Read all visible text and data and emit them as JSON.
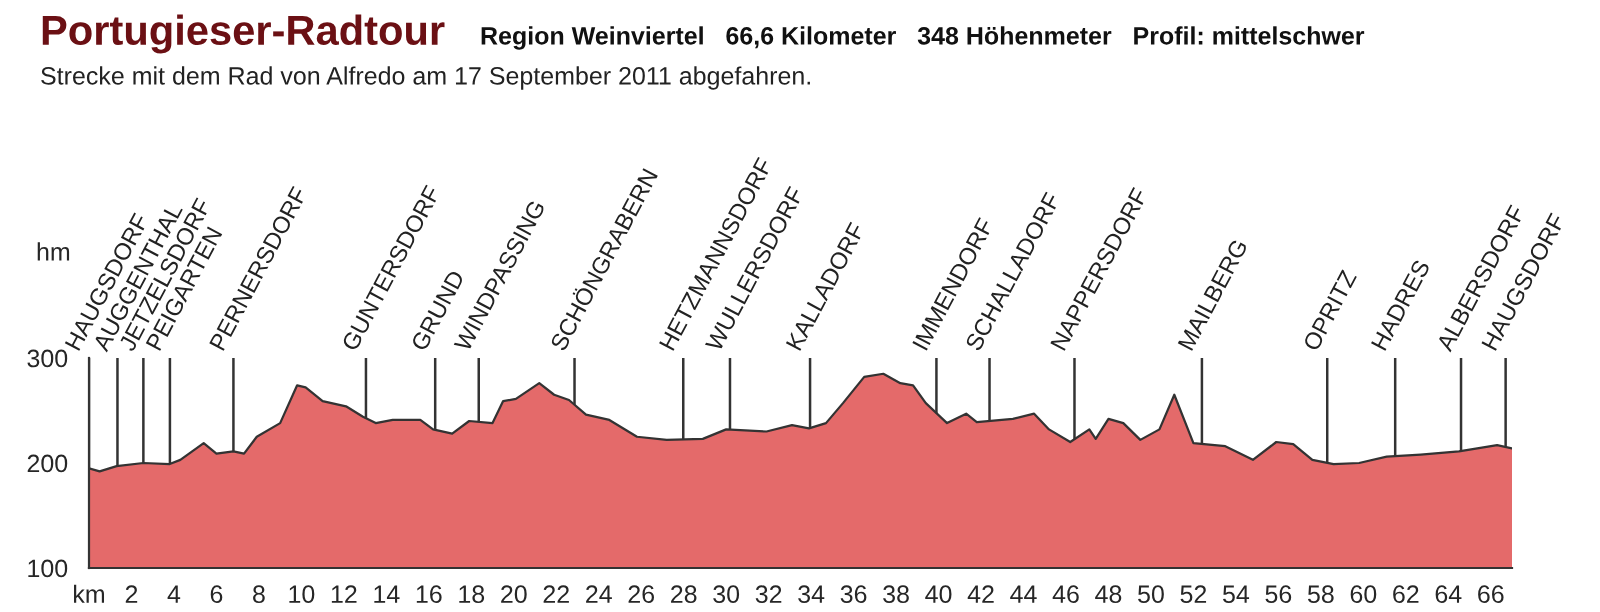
{
  "chart_data": {
    "type": "area",
    "title": "Portugieser-Radtour",
    "subtitle": "Region Weinviertel   66,6 Kilometer   348 Höhenmeter   Profil: mittelschwer",
    "annotations": [
      "Strecke mit dem Rad von Alfredo am 17 September 2011 abgefahren."
    ],
    "ylabel": "hm",
    "x": [
      0,
      0.5,
      1.3,
      2.56,
      3.8,
      4.3,
      5.4,
      6.0,
      6.8,
      7.3,
      7.9,
      9.0,
      9.8,
      10.2,
      11.0,
      12.1,
      12.9,
      13.5,
      14.3,
      15.6,
      16.2,
      17.1,
      17.9,
      19.0,
      19.5,
      20.1,
      21.2,
      21.9,
      22.6,
      23.4,
      24.5,
      25.8,
      27.2,
      28.9,
      30.0,
      31.9,
      33.1,
      33.9,
      34.7,
      35.5,
      36.5,
      37.4,
      38.2,
      38.8,
      39.4,
      40.4,
      41.3,
      41.8,
      43.5,
      44.5,
      45.2,
      46.2,
      47.1,
      47.4,
      48.0,
      48.7,
      49.5,
      50.4,
      51.1,
      52.0,
      53.5,
      54.8,
      55.9,
      56.7,
      57.6,
      58.6,
      59.8,
      61.1,
      62.7,
      64.5,
      66.3,
      67.0
    ],
    "series": [
      {
        "color": "#e46a6a",
        "values": [
          195,
          192,
          197,
          200,
          199,
          203,
          219,
          209,
          211,
          209,
          225,
          238,
          274,
          272,
          259,
          254,
          244,
          238,
          241,
          241,
          232,
          228,
          240,
          238,
          259,
          261,
          276,
          265,
          260,
          246,
          241,
          225,
          222,
          223,
          232,
          230,
          236,
          233,
          238,
          257,
          282,
          285,
          276,
          274,
          257,
          238,
          247,
          239,
          242,
          247,
          232,
          220,
          232,
          223,
          242,
          238,
          222,
          232,
          265,
          219,
          216,
          203,
          220,
          218,
          203,
          199,
          200,
          206,
          208,
          211,
          217,
          214
        ]
      }
    ],
    "xlim": [
      0,
      67
    ],
    "xticks": [
      {
        "value": 0,
        "label": "km"
      },
      2,
      4,
      6,
      8,
      10,
      12,
      14,
      16,
      18,
      20,
      22,
      24,
      26,
      28,
      30,
      32,
      34,
      36,
      38,
      40,
      42,
      44,
      46,
      48,
      50,
      52,
      54,
      56,
      58,
      60,
      62,
      64,
      66
    ],
    "ylim": [
      100,
      300
    ],
    "yticks": [
      100,
      200,
      300
    ],
    "grid": false,
    "ref_lines": [
      {
        "axis": "x",
        "value": 0,
        "label": "HAUGSDORF"
      },
      {
        "axis": "x",
        "value": 1.34,
        "label": "AUGGENTHAL"
      },
      {
        "axis": "x",
        "value": 2.56,
        "label": "JETZELSDORF"
      },
      {
        "axis": "x",
        "value": 3.81,
        "label": "PEIGARTEN"
      },
      {
        "axis": "x",
        "value": 6.8,
        "label": "PERNERSDORF"
      },
      {
        "axis": "x",
        "value": 13.04,
        "label": "GUNTERSDORF"
      },
      {
        "axis": "x",
        "value": 16.3,
        "label": "GRUND"
      },
      {
        "axis": "x",
        "value": 18.35,
        "label": "WINDPASSING"
      },
      {
        "axis": "x",
        "value": 22.86,
        "label": "SCHÖNGRABERN"
      },
      {
        "axis": "x",
        "value": 27.98,
        "label": "HETZMANNSDORF"
      },
      {
        "axis": "x",
        "value": 30.18,
        "label": "WULLERSDORF"
      },
      {
        "axis": "x",
        "value": 33.95,
        "label": "KALLADORF"
      },
      {
        "axis": "x",
        "value": 39.9,
        "label": "IMMENDORF"
      },
      {
        "axis": "x",
        "value": 42.4,
        "label": "SCHALLADORF"
      },
      {
        "axis": "x",
        "value": 46.4,
        "label": "NAPPERSDORF"
      },
      {
        "axis": "x",
        "value": 52.4,
        "label": "MAILBERG"
      },
      {
        "axis": "x",
        "value": 58.3,
        "label": "OPRITZ"
      },
      {
        "axis": "x",
        "value": 61.5,
        "label": "HADRES"
      },
      {
        "axis": "x",
        "value": 64.6,
        "label": "ALBERSDORF"
      },
      {
        "axis": "x",
        "value": 66.7,
        "label": "HAUGSDORF"
      }
    ]
  }
}
